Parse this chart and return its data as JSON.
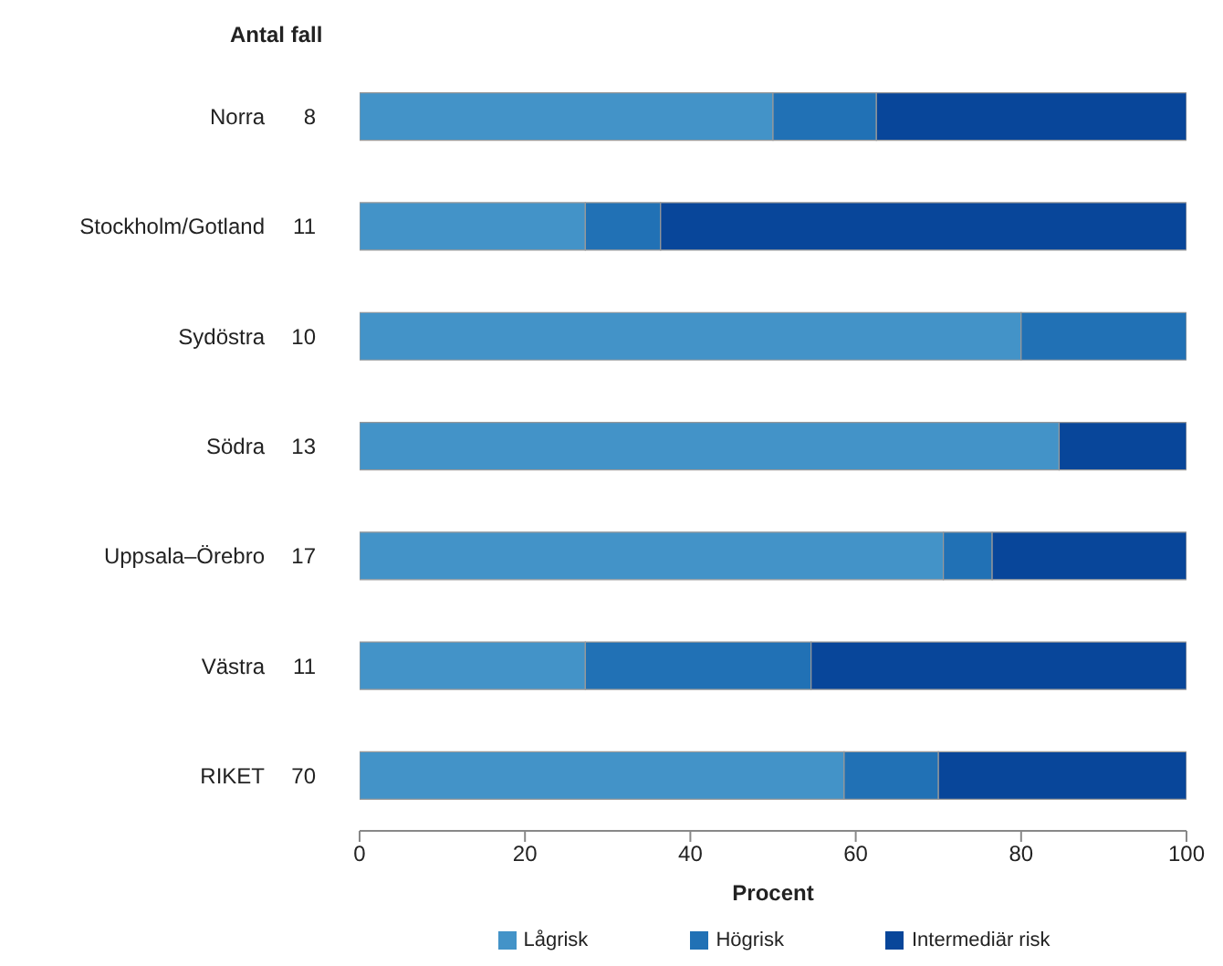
{
  "chart_data": {
    "type": "bar",
    "orientation": "horizontal",
    "stacked": true,
    "categories": [
      "Norra",
      "Stockholm/Gotland",
      "Sydöstra",
      "Södra",
      "Uppsala–Örebro",
      "Västra",
      "RIKET"
    ],
    "series": [
      {
        "name": "Lågrisk",
        "color": "#4393c8",
        "values": [
          50,
          27.3,
          80,
          84.6,
          70.6,
          27.3,
          58.6
        ]
      },
      {
        "name": "Högrisk",
        "color": "#2171b5",
        "values": [
          12.5,
          9.1,
          20,
          0,
          5.9,
          27.3,
          11.4
        ]
      },
      {
        "name": "Intermediär risk",
        "color": "#08469a",
        "values": [
          37.5,
          63.6,
          0,
          15.4,
          23.5,
          45.5,
          30
        ]
      }
    ],
    "xlabel": "Procent",
    "xlim": [
      0,
      100
    ],
    "xticks": [
      0,
      20,
      40,
      60,
      80,
      100
    ],
    "grid": false,
    "legend": "bottom",
    "annotations": [
      "Antal fall",
      "8",
      "11",
      "10",
      "13",
      "17",
      "11",
      "70"
    ]
  }
}
